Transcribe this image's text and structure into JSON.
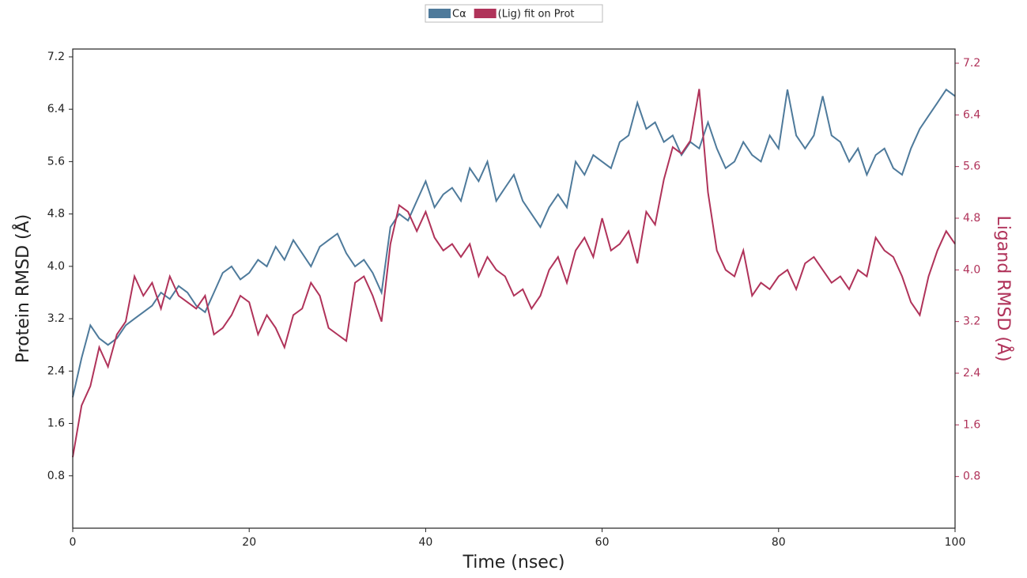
{
  "chart_data": {
    "type": "line",
    "legend": "top",
    "xlabel": "Time (nsec)",
    "ylabel": "Protein RMSD (Å)",
    "y2label": "Ligand RMSD (Å)",
    "x": [
      0,
      1,
      2,
      3,
      4,
      5,
      6,
      7,
      8,
      9,
      10,
      11,
      12,
      13,
      14,
      15,
      16,
      17,
      18,
      19,
      20,
      21,
      22,
      23,
      24,
      25,
      26,
      27,
      28,
      29,
      30,
      31,
      32,
      33,
      34,
      35,
      36,
      37,
      38,
      39,
      40,
      41,
      42,
      43,
      44,
      45,
      46,
      47,
      48,
      49,
      50,
      51,
      52,
      53,
      54,
      55,
      56,
      57,
      58,
      59,
      60,
      61,
      62,
      63,
      64,
      65,
      66,
      67,
      68,
      69,
      70,
      71,
      72,
      73,
      74,
      75,
      76,
      77,
      78,
      79,
      80,
      81,
      82,
      83,
      84,
      85,
      86,
      87,
      88,
      89,
      90,
      91,
      92,
      93,
      94,
      95,
      96,
      97,
      98,
      99,
      100
    ],
    "series": [
      {
        "name": "Cα",
        "color": "#4e7a9b",
        "axis": "y",
        "values": [
          2.0,
          2.6,
          3.1,
          2.9,
          2.8,
          2.9,
          3.1,
          3.2,
          3.3,
          3.4,
          3.6,
          3.5,
          3.7,
          3.6,
          3.4,
          3.3,
          3.6,
          3.9,
          4.0,
          3.8,
          3.9,
          4.1,
          4.0,
          4.3,
          4.1,
          4.4,
          4.2,
          4.0,
          4.3,
          4.4,
          4.5,
          4.2,
          4.0,
          4.1,
          3.9,
          3.6,
          4.6,
          4.8,
          4.7,
          5.0,
          5.3,
          4.9,
          5.1,
          5.2,
          5.0,
          5.5,
          5.3,
          5.6,
          5.0,
          5.2,
          5.4,
          5.0,
          4.8,
          4.6,
          4.9,
          5.1,
          4.9,
          5.6,
          5.4,
          5.7,
          5.6,
          5.5,
          5.9,
          6.0,
          6.5,
          6.1,
          6.2,
          5.9,
          6.0,
          5.7,
          5.9,
          5.8,
          6.2,
          5.8,
          5.5,
          5.6,
          5.9,
          5.7,
          5.6,
          6.0,
          5.8,
          6.7,
          6.0,
          5.8,
          6.0,
          6.6,
          6.0,
          5.9,
          5.6,
          5.8,
          5.4,
          5.7,
          5.8,
          5.5,
          5.4,
          5.8,
          6.1,
          6.3,
          6.5,
          6.7,
          6.6
        ]
      },
      {
        "name": "(Lig) fit on Prot",
        "color": "#b0335a",
        "axis": "y2",
        "values": [
          1.1,
          1.9,
          2.2,
          2.8,
          2.5,
          3.0,
          3.2,
          3.9,
          3.6,
          3.8,
          3.4,
          3.9,
          3.6,
          3.5,
          3.4,
          3.6,
          3.0,
          3.1,
          3.3,
          3.6,
          3.5,
          3.0,
          3.3,
          3.1,
          2.8,
          3.3,
          3.4,
          3.8,
          3.6,
          3.1,
          3.0,
          2.9,
          3.8,
          3.9,
          3.6,
          3.2,
          4.4,
          5.0,
          4.9,
          4.6,
          4.9,
          4.5,
          4.3,
          4.4,
          4.2,
          4.4,
          3.9,
          4.2,
          4.0,
          3.9,
          3.6,
          3.7,
          3.4,
          3.6,
          4.0,
          4.2,
          3.8,
          4.3,
          4.5,
          4.2,
          4.8,
          4.3,
          4.4,
          4.6,
          4.1,
          4.9,
          4.7,
          5.4,
          5.9,
          5.8,
          6.0,
          6.8,
          5.2,
          4.3,
          4.0,
          3.9,
          4.3,
          3.6,
          3.8,
          3.7,
          3.9,
          4.0,
          3.7,
          4.1,
          4.2,
          4.0,
          3.8,
          3.9,
          3.7,
          4.0,
          3.9,
          4.5,
          4.3,
          4.2,
          3.9,
          3.5,
          3.3,
          3.9,
          4.3,
          4.6,
          4.4
        ]
      }
    ],
    "xlim": [
      0,
      100
    ],
    "xticks": [
      0,
      20,
      40,
      60,
      80,
      100
    ],
    "ylim": [
      0,
      7.32
    ],
    "yticks": [
      0.8,
      1.6,
      2.4,
      3.2,
      {
        "value": 4,
        "label": "4.0"
      },
      4.8,
      5.6,
      6.4,
      7.2
    ],
    "y2lim": [
      0,
      7.42
    ],
    "y2ticks": [
      0.8,
      1.6,
      2.4,
      3.2,
      {
        "value": 4,
        "label": "4.0"
      },
      4.8,
      5.6,
      6.4,
      7.2
    ]
  }
}
